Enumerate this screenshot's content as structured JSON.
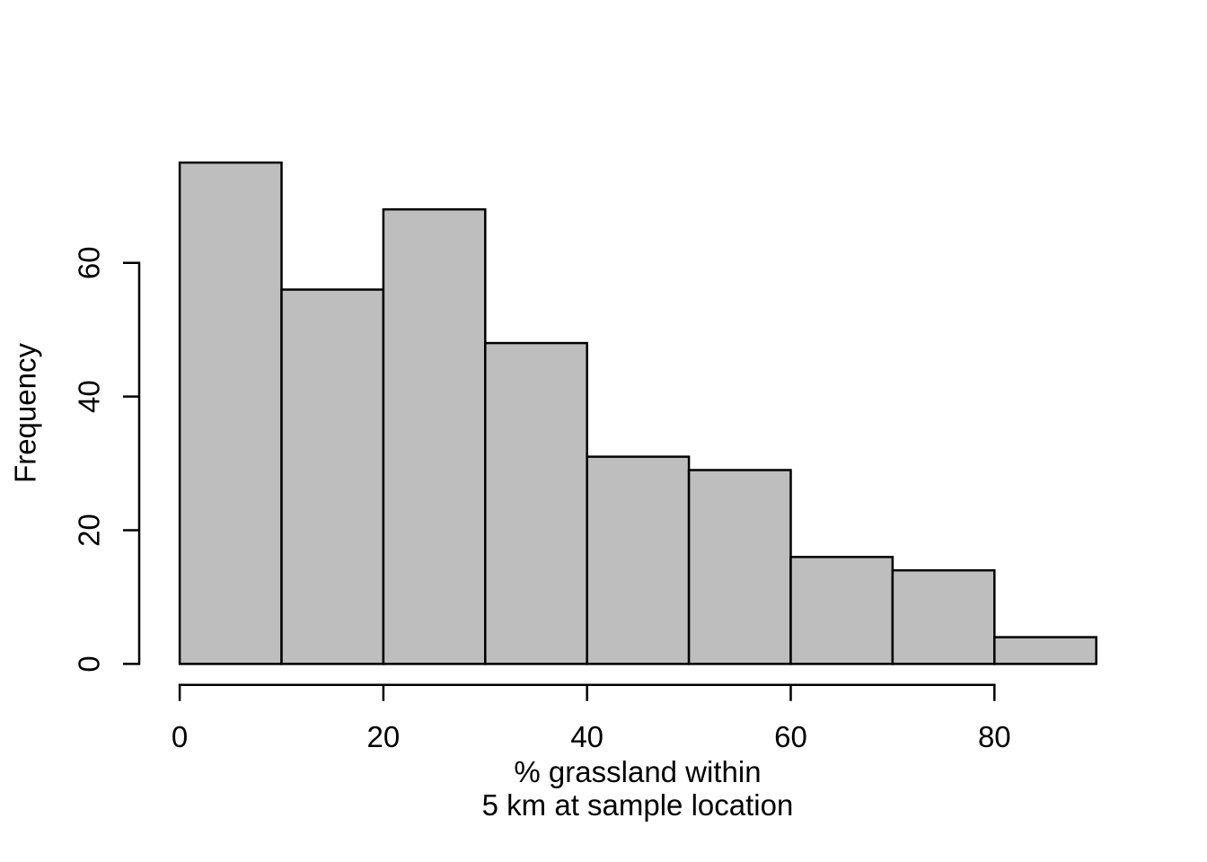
{
  "chart_data": {
    "type": "bar",
    "subtype": "histogram",
    "title": "",
    "xlabel_lines": [
      "% grassland within",
      "5 km at sample location"
    ],
    "ylabel": "Frequency",
    "bin_edges": [
      0,
      10,
      20,
      30,
      40,
      50,
      60,
      70,
      80,
      90
    ],
    "categories": [
      "0-10",
      "10-20",
      "20-30",
      "30-40",
      "40-50",
      "50-60",
      "60-70",
      "70-80",
      "80-90"
    ],
    "values": [
      75,
      56,
      68,
      48,
      31,
      29,
      16,
      14,
      4
    ],
    "x_ticks": [
      0,
      20,
      40,
      60,
      80
    ],
    "y_ticks": [
      0,
      20,
      40,
      60
    ],
    "xlim": [
      0,
      90
    ],
    "ylim": [
      0,
      75
    ],
    "grid": false,
    "legend": "none",
    "bar_fill": "#bebebe",
    "bar_stroke": "#000000",
    "axis_color": "#000000",
    "background": "#ffffff"
  }
}
